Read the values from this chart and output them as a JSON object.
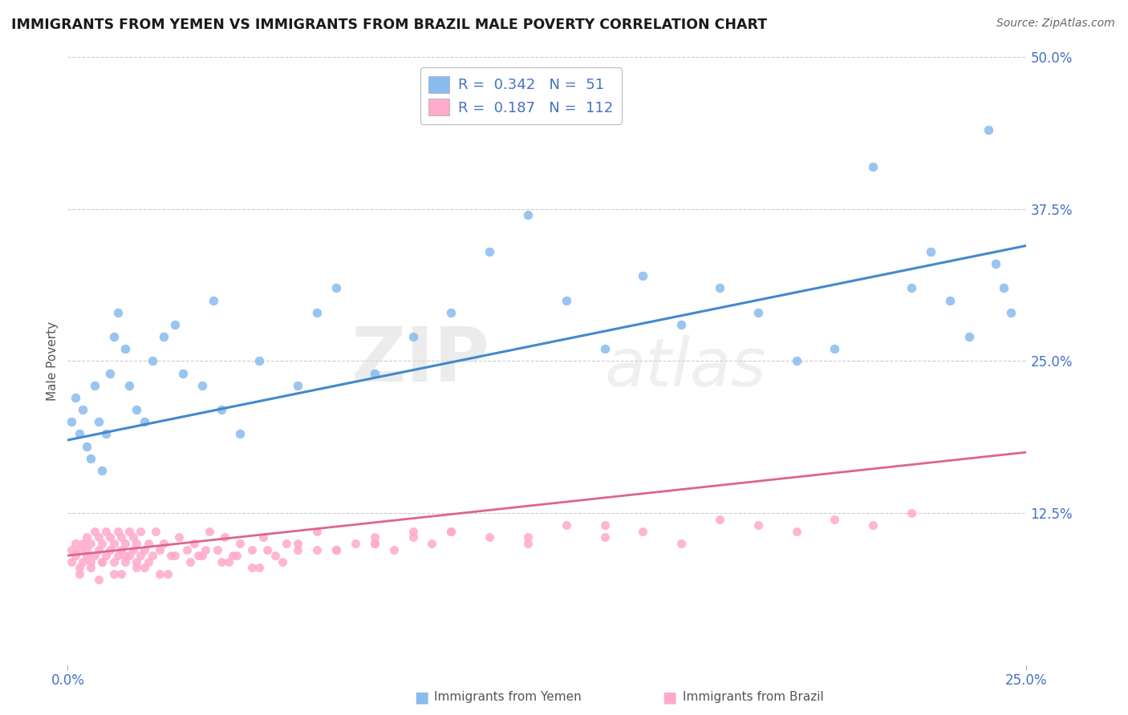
{
  "title": "IMMIGRANTS FROM YEMEN VS IMMIGRANTS FROM BRAZIL MALE POVERTY CORRELATION CHART",
  "source": "Source: ZipAtlas.com",
  "ylabel_left": "Male Poverty",
  "y_ticks": [
    0.0,
    0.125,
    0.25,
    0.375,
    0.5
  ],
  "y_tick_labels": [
    "",
    "12.5%",
    "25.0%",
    "37.5%",
    "50.0%"
  ],
  "xlim": [
    0.0,
    0.25
  ],
  "ylim": [
    0.0,
    0.5
  ],
  "yemen_color": "#88bbee",
  "brazil_color": "#ffaacc",
  "yemen_line_color": "#4488cc",
  "brazil_line_color": "#dd6688",
  "yemen_R": 0.342,
  "yemen_N": 51,
  "brazil_R": 0.187,
  "brazil_N": 112,
  "legend_label_yemen": "Immigrants from Yemen",
  "legend_label_brazil": "Immigrants from Brazil",
  "watermark_zip": "ZIP",
  "watermark_atlas": "atlas",
  "background_color": "#ffffff",
  "grid_color": "#cccccc",
  "tick_label_color": "#4472c4",
  "title_color": "#1a1a1a",
  "yemen_scatter_x": [
    0.001,
    0.002,
    0.003,
    0.004,
    0.005,
    0.006,
    0.007,
    0.008,
    0.009,
    0.01,
    0.011,
    0.012,
    0.013,
    0.015,
    0.016,
    0.018,
    0.02,
    0.022,
    0.025,
    0.028,
    0.03,
    0.035,
    0.038,
    0.04,
    0.045,
    0.05,
    0.06,
    0.065,
    0.07,
    0.08,
    0.09,
    0.1,
    0.11,
    0.12,
    0.13,
    0.14,
    0.15,
    0.16,
    0.17,
    0.18,
    0.19,
    0.2,
    0.21,
    0.22,
    0.225,
    0.23,
    0.235,
    0.24,
    0.242,
    0.244,
    0.246
  ],
  "yemen_scatter_y": [
    0.2,
    0.22,
    0.19,
    0.21,
    0.18,
    0.17,
    0.23,
    0.2,
    0.16,
    0.19,
    0.24,
    0.27,
    0.29,
    0.26,
    0.23,
    0.21,
    0.2,
    0.25,
    0.27,
    0.28,
    0.24,
    0.23,
    0.3,
    0.21,
    0.19,
    0.25,
    0.23,
    0.29,
    0.31,
    0.24,
    0.27,
    0.29,
    0.34,
    0.37,
    0.3,
    0.26,
    0.32,
    0.28,
    0.31,
    0.29,
    0.25,
    0.26,
    0.41,
    0.31,
    0.34,
    0.3,
    0.27,
    0.44,
    0.33,
    0.31,
    0.29
  ],
  "brazil_scatter_x": [
    0.001,
    0.001,
    0.002,
    0.002,
    0.003,
    0.003,
    0.004,
    0.004,
    0.005,
    0.005,
    0.005,
    0.006,
    0.006,
    0.007,
    0.007,
    0.008,
    0.008,
    0.009,
    0.009,
    0.01,
    0.01,
    0.011,
    0.011,
    0.012,
    0.012,
    0.013,
    0.013,
    0.014,
    0.014,
    0.015,
    0.015,
    0.016,
    0.016,
    0.017,
    0.017,
    0.018,
    0.018,
    0.019,
    0.019,
    0.02,
    0.021,
    0.022,
    0.023,
    0.024,
    0.025,
    0.027,
    0.029,
    0.031,
    0.033,
    0.035,
    0.037,
    0.039,
    0.041,
    0.043,
    0.045,
    0.048,
    0.051,
    0.054,
    0.057,
    0.06,
    0.065,
    0.07,
    0.075,
    0.08,
    0.085,
    0.09,
    0.095,
    0.1,
    0.11,
    0.12,
    0.13,
    0.14,
    0.15,
    0.16,
    0.17,
    0.18,
    0.19,
    0.2,
    0.21,
    0.22,
    0.003,
    0.006,
    0.009,
    0.012,
    0.015,
    0.018,
    0.021,
    0.024,
    0.028,
    0.032,
    0.036,
    0.04,
    0.044,
    0.048,
    0.052,
    0.056,
    0.06,
    0.07,
    0.08,
    0.09,
    0.1,
    0.12,
    0.14,
    0.008,
    0.014,
    0.02,
    0.026,
    0.034,
    0.042,
    0.05,
    0.065,
    0.08
  ],
  "brazil_scatter_y": [
    0.085,
    0.095,
    0.09,
    0.1,
    0.08,
    0.095,
    0.085,
    0.1,
    0.09,
    0.095,
    0.105,
    0.085,
    0.1,
    0.09,
    0.11,
    0.095,
    0.105,
    0.085,
    0.1,
    0.09,
    0.11,
    0.095,
    0.105,
    0.085,
    0.1,
    0.09,
    0.11,
    0.095,
    0.105,
    0.085,
    0.1,
    0.09,
    0.11,
    0.095,
    0.105,
    0.085,
    0.1,
    0.09,
    0.11,
    0.095,
    0.1,
    0.09,
    0.11,
    0.095,
    0.1,
    0.09,
    0.105,
    0.095,
    0.1,
    0.09,
    0.11,
    0.095,
    0.105,
    0.09,
    0.1,
    0.095,
    0.105,
    0.09,
    0.1,
    0.095,
    0.11,
    0.095,
    0.1,
    0.105,
    0.095,
    0.11,
    0.1,
    0.11,
    0.105,
    0.1,
    0.115,
    0.105,
    0.11,
    0.1,
    0.12,
    0.115,
    0.11,
    0.12,
    0.115,
    0.125,
    0.075,
    0.08,
    0.085,
    0.075,
    0.09,
    0.08,
    0.085,
    0.075,
    0.09,
    0.085,
    0.095,
    0.085,
    0.09,
    0.08,
    0.095,
    0.085,
    0.1,
    0.095,
    0.1,
    0.105,
    0.11,
    0.105,
    0.115,
    0.07,
    0.075,
    0.08,
    0.075,
    0.09,
    0.085,
    0.08,
    0.095,
    0.1
  ]
}
